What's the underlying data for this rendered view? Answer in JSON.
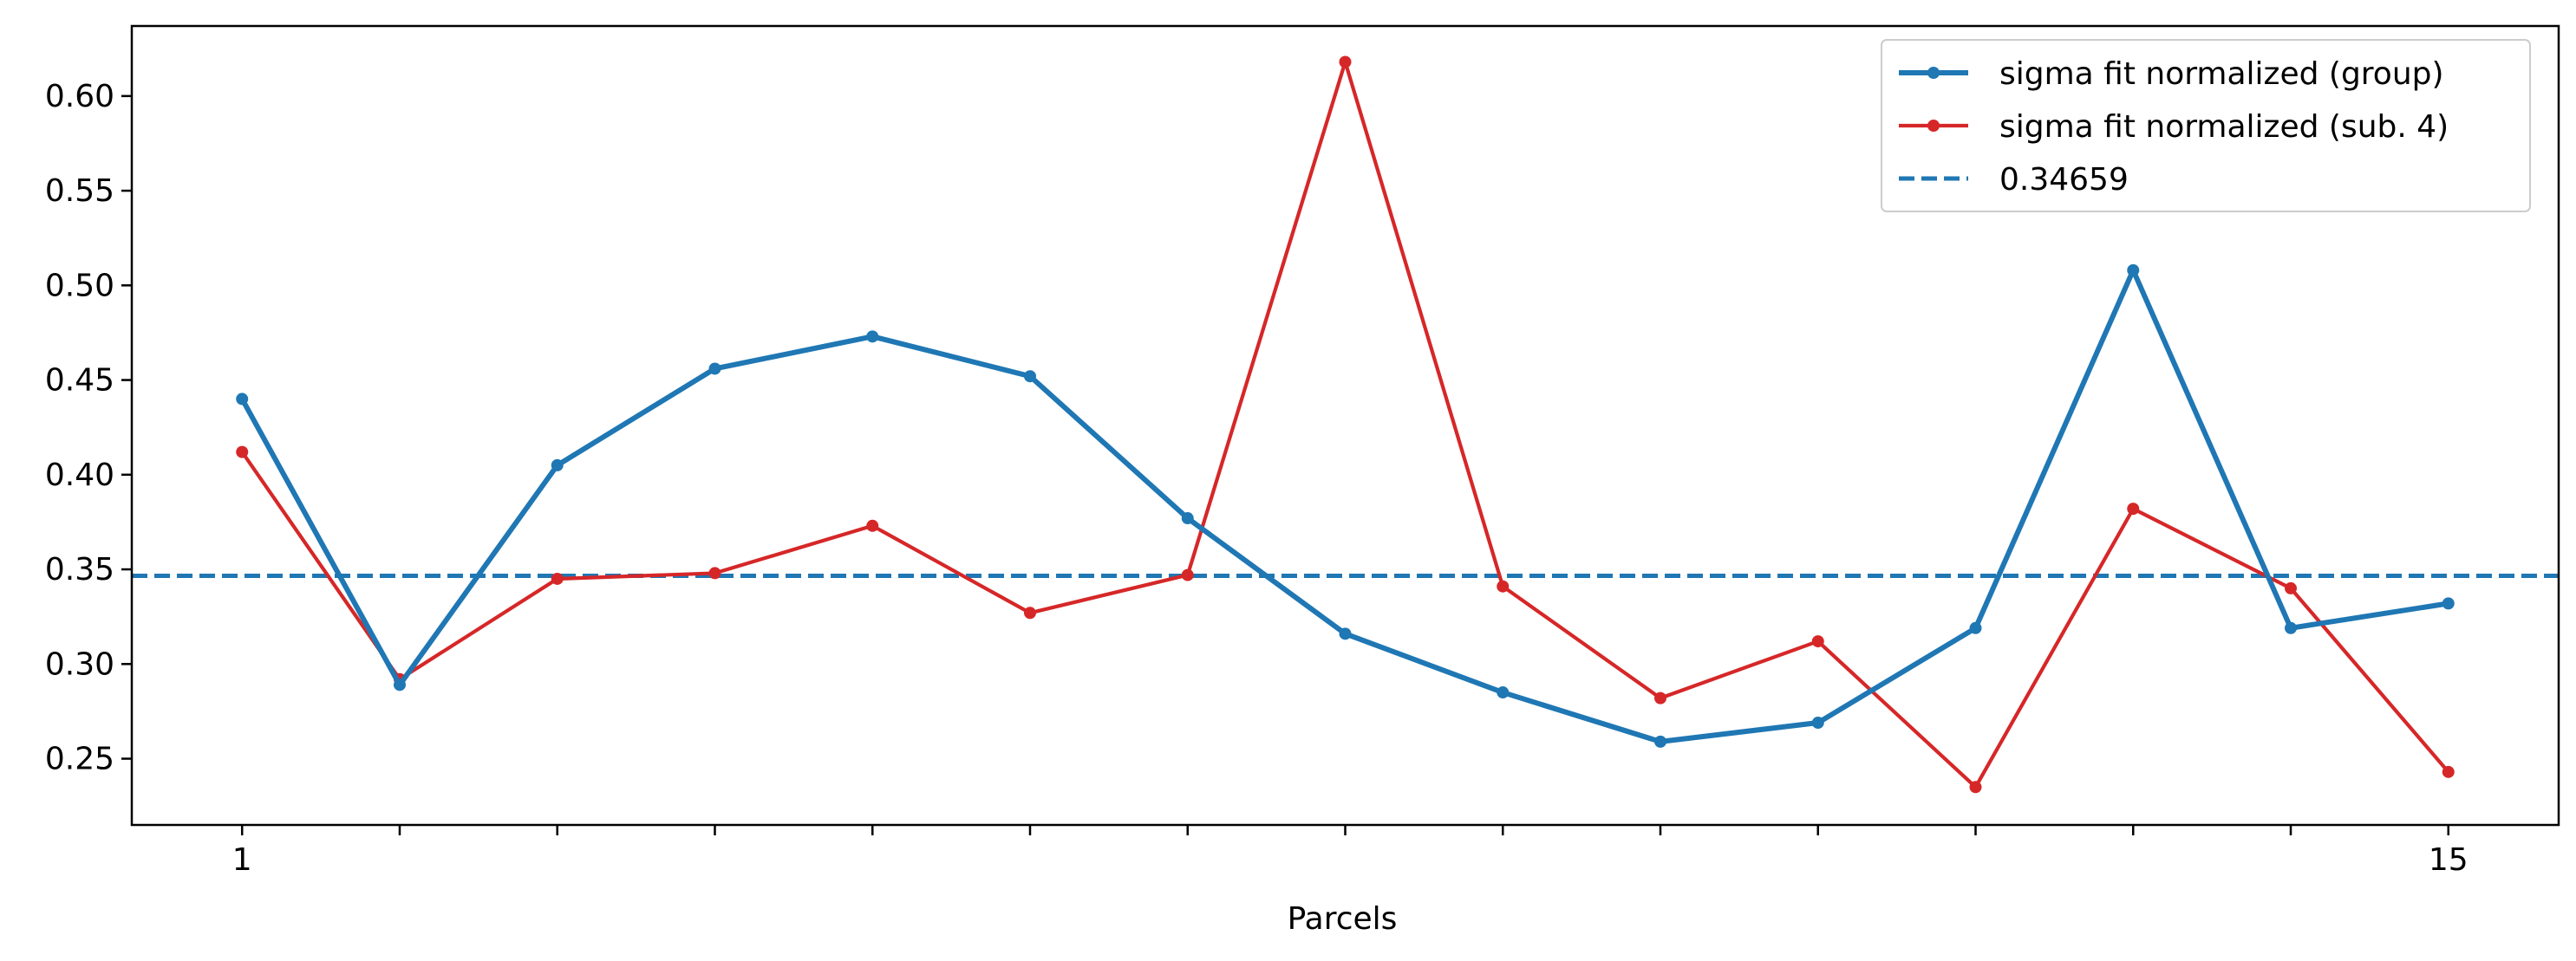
{
  "chart_data": {
    "type": "line",
    "title": "",
    "xlabel": "Parcels",
    "ylabel": "",
    "x": [
      1,
      2,
      3,
      4,
      5,
      6,
      7,
      8,
      9,
      10,
      11,
      12,
      13,
      14,
      15
    ],
    "xlim": [
      0.3,
      15.7
    ],
    "ylim": [
      0.215,
      0.637
    ],
    "x_tick_labels": [
      {
        "x": 1,
        "label": "1"
      },
      {
        "x": 15,
        "label": "15"
      }
    ],
    "x_minor_ticks": [
      2,
      3,
      4,
      5,
      6,
      7,
      8,
      9,
      10,
      11,
      12,
      13,
      14
    ],
    "y_ticks": [
      0.25,
      0.3,
      0.35,
      0.4,
      0.45,
      0.5,
      0.55,
      0.6
    ],
    "y_tick_labels": [
      "0.25",
      "0.30",
      "0.35",
      "0.40",
      "0.45",
      "0.50",
      "0.55",
      "0.60"
    ],
    "grid": false,
    "legend_position": "top-right",
    "series": [
      {
        "name": "sigma fit normalized (group)",
        "color": "#1f77b4",
        "values": [
          0.44,
          0.289,
          0.405,
          0.456,
          0.473,
          0.452,
          0.377,
          0.316,
          0.285,
          0.259,
          0.269,
          0.319,
          0.508,
          0.319,
          0.332
        ]
      },
      {
        "name": "sigma fit normalized (sub. 4)",
        "color": "#d62728",
        "values": [
          0.412,
          0.292,
          0.345,
          0.348,
          0.373,
          0.327,
          0.347,
          0.618,
          0.341,
          0.282,
          0.312,
          0.235,
          0.382,
          0.34,
          0.243
        ]
      }
    ],
    "reference_line": {
      "name": "0.34659",
      "value": 0.34659,
      "color": "#1f77b4",
      "style": "dashed"
    }
  }
}
